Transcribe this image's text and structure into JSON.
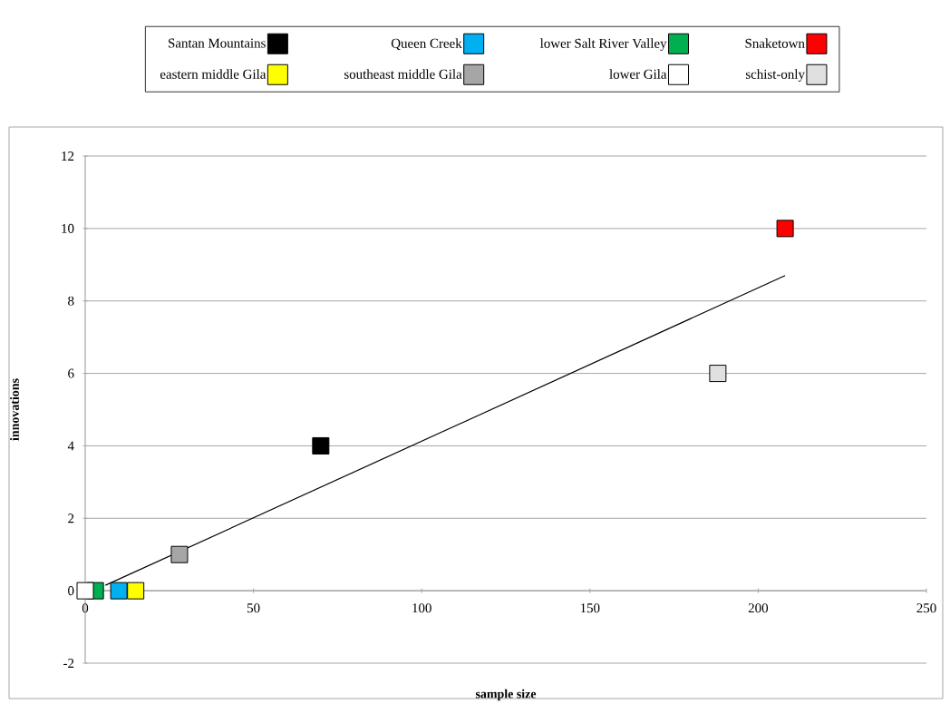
{
  "chart_data": {
    "type": "scatter",
    "xlabel": "sample size",
    "ylabel": "innovations",
    "xlim": [
      0,
      250
    ],
    "xticks": [
      0,
      50,
      100,
      150,
      200,
      250
    ],
    "ylim": [
      -2,
      12
    ],
    "yticks": [
      -2,
      0,
      2,
      4,
      6,
      8,
      10,
      12
    ],
    "grid": "y",
    "legend": "top",
    "marker": "square",
    "series": [
      {
        "name": "Santan Mountains",
        "color": "#000000",
        "x": [
          70
        ],
        "values": [
          4
        ]
      },
      {
        "name": "Queen Creek",
        "color": "#00b0f0",
        "x": [
          10
        ],
        "values": [
          0
        ]
      },
      {
        "name": "lower Salt River Valley",
        "color": "#00b050",
        "x": [
          3
        ],
        "values": [
          0
        ]
      },
      {
        "name": "Snaketown",
        "color": "#ff0000",
        "x": [
          208
        ],
        "values": [
          10
        ]
      },
      {
        "name": "eastern middle Gila",
        "color": "#ffff00",
        "x": [
          15
        ],
        "values": [
          0
        ]
      },
      {
        "name": "southeast middle Gila",
        "color": "#a6a6a6",
        "x": [
          28
        ],
        "values": [
          1
        ]
      },
      {
        "name": "lower Gila",
        "color": "#ffffff",
        "x": [
          0
        ],
        "values": [
          0
        ]
      },
      {
        "name": "schist-only",
        "color": "#e0e0e0",
        "x": [
          188
        ],
        "values": [
          6
        ]
      },
      {
        "type": "line",
        "marker": "none",
        "color": "#000000",
        "x": [
          6,
          208
        ],
        "values": [
          0.15,
          8.7
        ]
      }
    ]
  }
}
